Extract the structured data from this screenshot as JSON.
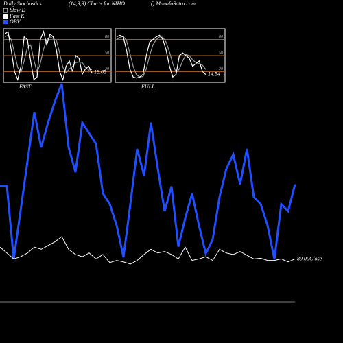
{
  "header": {
    "title": "Daily Stochastics",
    "subtitle": "(14,3,3) Charts for NIHO",
    "source": "() MunafaSutra.com"
  },
  "chart_data": [
    {
      "type": "line",
      "title": "FAST",
      "ylim": [
        0,
        100
      ],
      "yticks": [
        80,
        50,
        20
      ],
      "grid_color": "#b5651d",
      "series": [
        {
          "name": "Slow D",
          "color": "#9a9a9a",
          "values": [
            85,
            88,
            80,
            55,
            28,
            18,
            40,
            65,
            70,
            42,
            18,
            35,
            62,
            80,
            85,
            82,
            78,
            55,
            28,
            18,
            25,
            30,
            37,
            38,
            37,
            28,
            23,
            24
          ]
        },
        {
          "name": "Fast K",
          "color": "#ffffff",
          "values": [
            90,
            95,
            60,
            20,
            5,
            30,
            85,
            80,
            40,
            5,
            10,
            80,
            95,
            70,
            90,
            85,
            60,
            20,
            5,
            30,
            40,
            20,
            50,
            45,
            15,
            25,
            30,
            18.05
          ]
        }
      ]
    },
    {
      "type": "line",
      "title": "FULL",
      "ylim": [
        0,
        100
      ],
      "yticks": [
        80,
        50,
        20
      ],
      "grid_color": "#b5651d",
      "series": [
        {
          "color": "#9a9a9a",
          "values": [
            80,
            84,
            86,
            78,
            55,
            30,
            14,
            10,
            11,
            25,
            50,
            70,
            80,
            85,
            84,
            75,
            57,
            35,
            18,
            25,
            40,
            52,
            50,
            42,
            37,
            35,
            32,
            24
          ]
        },
        {
          "color": "#ffffff",
          "values": [
            85,
            88,
            85,
            60,
            25,
            10,
            8,
            10,
            15,
            50,
            75,
            80,
            85,
            88,
            80,
            60,
            30,
            10,
            15,
            50,
            55,
            50,
            45,
            30,
            35,
            40,
            20,
            14.54
          ]
        }
      ]
    },
    {
      "type": "line",
      "series": [
        {
          "name": "OBV",
          "color": "#1f4fff",
          "values": [
            126,
            126,
            22,
            91,
            160,
            230,
            180,
            215,
            245,
            270,
            180,
            145,
            215,
            200,
            185,
            115,
            100,
            70,
            25,
            100,
            178,
            140,
            215,
            150,
            90,
            125,
            40,
            80,
            115,
            70,
            30,
            50,
            110,
            150,
            170,
            128,
            178,
            110,
            100,
            70,
            22,
            100,
            90,
            128
          ]
        },
        {
          "color": "#ffffff",
          "label": "89.00Close",
          "values": [
            92.2,
            90.6,
            89.0,
            89.6,
            90.6,
            92.2,
            91.6,
            92.6,
            93.6,
            95.0,
            91.6,
            90.2,
            89.6,
            90.6,
            89.0,
            90.2,
            88.0,
            88.6,
            88.2,
            87.6,
            88.6,
            90.2,
            91.6,
            90.6,
            91.0,
            90.2,
            89.0,
            92.2,
            88.6,
            89.0,
            89.6,
            88.6,
            91.6,
            90.6,
            90.2,
            91.0,
            90.0,
            89.0,
            89.2,
            88.6,
            88.6,
            89.0,
            88.2,
            89.0
          ]
        }
      ]
    }
  ]
}
